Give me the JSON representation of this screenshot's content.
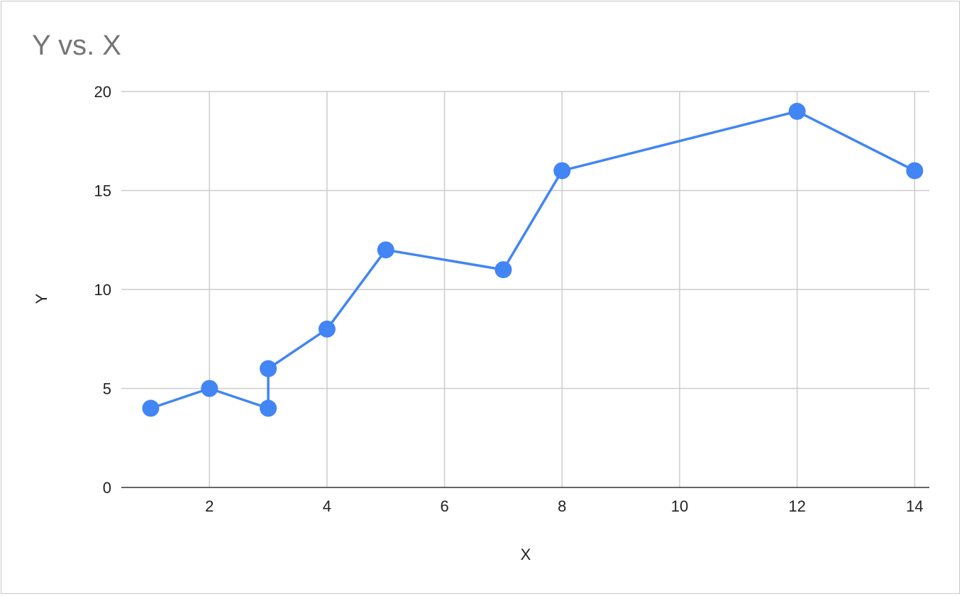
{
  "chart_data": {
    "type": "line",
    "title": "Y vs. X",
    "xlabel": "X",
    "ylabel": "Y",
    "x_range": [
      0.5,
      14.25
    ],
    "ylim": [
      0,
      20
    ],
    "x_ticks": [
      2,
      4,
      6,
      8,
      10,
      12,
      14
    ],
    "y_ticks": [
      0,
      5,
      10,
      15,
      20
    ],
    "grid": true,
    "legend": "none",
    "series": [
      {
        "color": "#4285f4",
        "points": [
          {
            "x": 1,
            "y": 4
          },
          {
            "x": 2,
            "y": 5
          },
          {
            "x": 3,
            "y": 4
          },
          {
            "x": 3,
            "y": 6
          },
          {
            "x": 4,
            "y": 8
          },
          {
            "x": 5,
            "y": 12
          },
          {
            "x": 7,
            "y": 11
          },
          {
            "x": 8,
            "y": 16
          },
          {
            "x": 12,
            "y": 19
          },
          {
            "x": 14,
            "y": 16
          }
        ]
      }
    ]
  }
}
